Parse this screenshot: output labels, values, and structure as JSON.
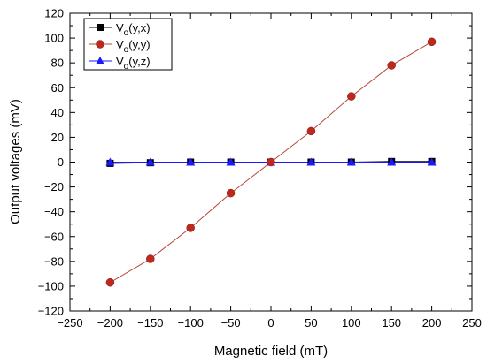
{
  "chart_data": {
    "type": "line",
    "xlabel": "Magnetic field (mT)",
    "ylabel": "Output voltages (mV)",
    "xlim": [
      -250,
      250
    ],
    "ylim": [
      -120,
      120
    ],
    "xticks": [
      -250,
      -200,
      -150,
      -100,
      -50,
      0,
      50,
      100,
      150,
      200,
      250
    ],
    "yticks": [
      -120,
      -100,
      -80,
      -60,
      -40,
      -20,
      0,
      20,
      40,
      60,
      80,
      100,
      120
    ],
    "grid": false,
    "legend_position": "top-left",
    "x": [
      -200,
      -150,
      -100,
      -50,
      0,
      50,
      100,
      150,
      200
    ],
    "series": [
      {
        "name": "V",
        "subscript": "o",
        "suffix": "(y,x)",
        "marker": "square",
        "color": "#000000",
        "values": [
          -1,
          -0.5,
          0,
          0,
          0,
          0,
          0,
          0.5,
          0.5
        ]
      },
      {
        "name": "V",
        "subscript": "o",
        "suffix": "(y,y)",
        "marker": "circle",
        "color": "#c0281d",
        "line_color": "#b5473c",
        "values": [
          -97,
          -78,
          -53,
          -25,
          0,
          25,
          53,
          78,
          97
        ]
      },
      {
        "name": "V",
        "subscript": "o",
        "suffix": "(y,z)",
        "marker": "triangle",
        "color": "#1a1aff",
        "values": [
          0,
          0,
          0,
          0,
          0,
          0,
          0,
          0,
          0
        ]
      }
    ]
  }
}
